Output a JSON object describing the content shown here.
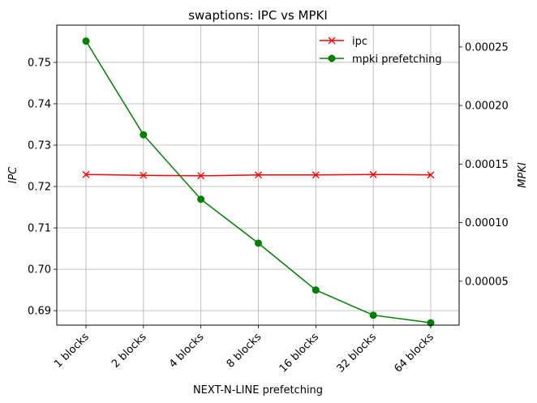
{
  "chart_data": {
    "type": "line",
    "title": "swaptions: IPC vs MPKI",
    "xlabel": "NEXT-N-LINE prefetching",
    "ylabel": "IPC",
    "y2label": "MPKI",
    "categories": [
      "1 blocks",
      "2 blocks",
      "4 blocks",
      "8 blocks",
      "16 blocks",
      "32 blocks",
      "64 blocks"
    ],
    "ylim": [
      0.6865,
      0.759
    ],
    "y2lim": [
      1.25e-05,
      0.0002686
    ],
    "yticks": [
      "0.69",
      "0.70",
      "0.71",
      "0.72",
      "0.73",
      "0.74",
      "0.75"
    ],
    "y2ticks": [
      "0.00005",
      "0.00010",
      "0.00015",
      "0.00020",
      "0.00025"
    ],
    "grid": true,
    "legend_position": "top-right",
    "series": [
      {
        "name": "ipc",
        "axis": "left",
        "color": "#ff0000",
        "marker": "x",
        "values": [
          0.7229,
          0.7227,
          0.7226,
          0.7228,
          0.7228,
          0.7229,
          0.7228
        ]
      },
      {
        "name": "mpki prefetching",
        "axis": "right",
        "color": "#008000",
        "marker": "o",
        "values": [
          0.000255,
          0.000175,
          0.00012,
          8.25e-05,
          4.25e-05,
          2.1e-05,
          1.45e-05
        ]
      }
    ]
  }
}
